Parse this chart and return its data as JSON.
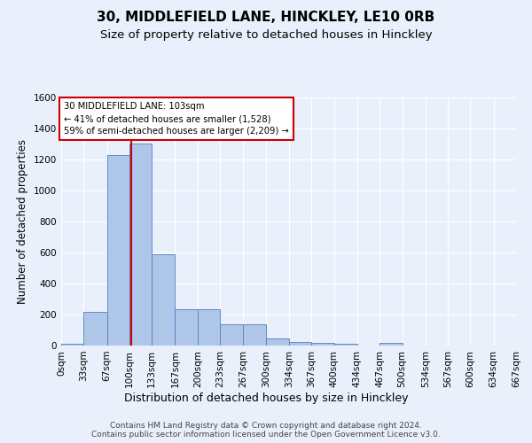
{
  "title1": "30, MIDDLEFIELD LANE, HINCKLEY, LE10 0RB",
  "title2": "Size of property relative to detached houses in Hinckley",
  "xlabel": "Distribution of detached houses by size in Hinckley",
  "ylabel": "Number of detached properties",
  "footnote": "Contains HM Land Registry data © Crown copyright and database right 2024.\nContains public sector information licensed under the Open Government Licence v3.0.",
  "bin_labels": [
    "0sqm",
    "33sqm",
    "67sqm",
    "100sqm",
    "133sqm",
    "167sqm",
    "200sqm",
    "233sqm",
    "267sqm",
    "300sqm",
    "334sqm",
    "367sqm",
    "400sqm",
    "434sqm",
    "467sqm",
    "500sqm",
    "534sqm",
    "567sqm",
    "600sqm",
    "634sqm",
    "667sqm"
  ],
  "bin_edges": [
    0,
    33,
    67,
    100,
    133,
    167,
    200,
    233,
    267,
    300,
    334,
    367,
    400,
    434,
    467,
    500,
    534,
    567,
    600,
    634,
    667
  ],
  "bar_heights": [
    10,
    220,
    1230,
    1300,
    590,
    235,
    235,
    140,
    140,
    48,
    25,
    20,
    10,
    0,
    15,
    0,
    0,
    0,
    0,
    0
  ],
  "bar_color": "#aec6e8",
  "bar_edge_color": "#5080c0",
  "property_sqm": 103,
  "vline_color": "#cc0000",
  "annotation_text": "30 MIDDLEFIELD LANE: 103sqm\n← 41% of detached houses are smaller (1,528)\n59% of semi-detached houses are larger (2,209) →",
  "annotation_box_color": "#ffffff",
  "annotation_box_edge_color": "#cc0000",
  "ylim": [
    0,
    1600
  ],
  "yticks": [
    0,
    200,
    400,
    600,
    800,
    1000,
    1200,
    1400,
    1600
  ],
  "bg_color": "#eaf0fb",
  "plot_bg_color": "#eaf0fb",
  "grid_color": "#ffffff",
  "title1_fontsize": 11,
  "title2_fontsize": 9.5,
  "xlabel_fontsize": 9,
  "ylabel_fontsize": 8.5,
  "tick_fontsize": 7.5,
  "footnote_fontsize": 6.5
}
